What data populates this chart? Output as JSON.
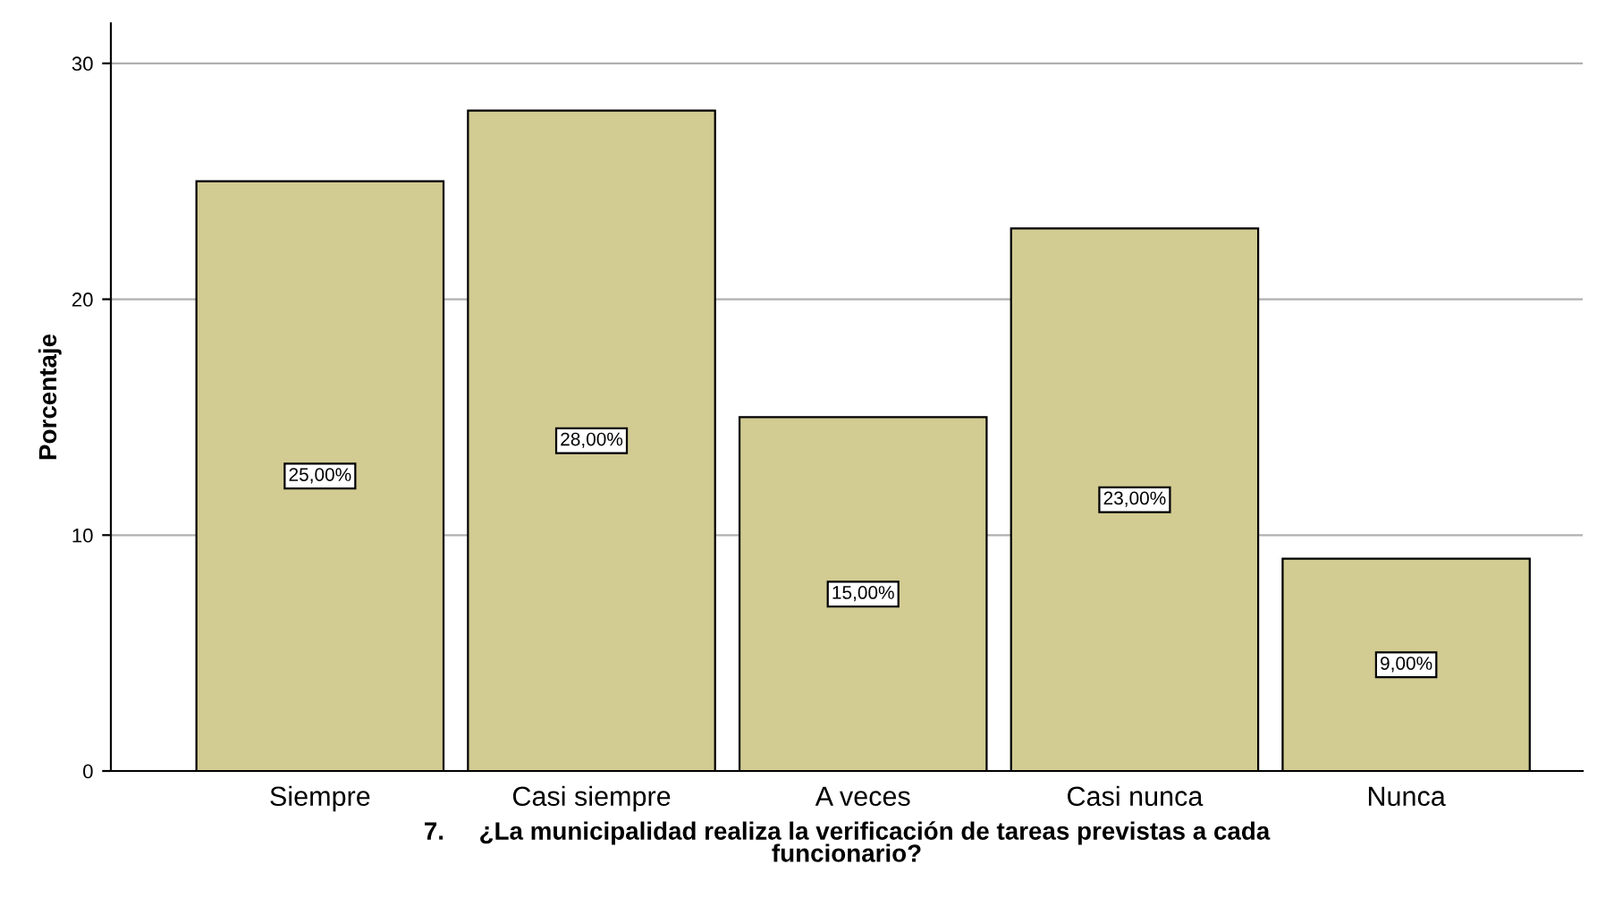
{
  "chart_data": {
    "type": "bar",
    "categories": [
      "Siempre",
      "Casi siempre",
      "A veces",
      "Casi nunca",
      "Nunca"
    ],
    "values": [
      25,
      28,
      15,
      23,
      9
    ],
    "value_labels": [
      "25,00%",
      "28,00%",
      "15,00%",
      "23,00%",
      "9,00%"
    ],
    "color": "#d2cb92",
    "xlabel": "7.     ¿La municipalidad realiza la verificación de tareas previstas a cada\nfuncionario?",
    "ylabel": "Porcentaje",
    "ylim": [
      0,
      31.7
    ],
    "yticks": [
      0,
      10,
      20,
      30
    ],
    "grid": "y",
    "legend": false
  }
}
